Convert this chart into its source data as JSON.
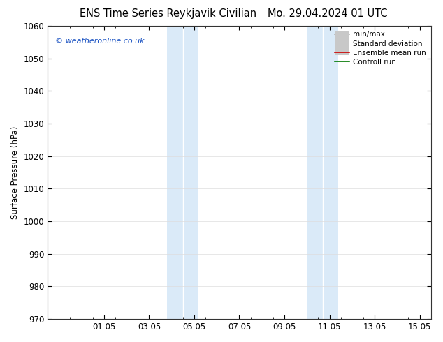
{
  "title_left": "ENS Time Series Reykjavik Civilian",
  "title_right": "Mo. 29.04.2024 01 UTC",
  "ylabel": "Surface Pressure (hPa)",
  "ylim": [
    970,
    1060
  ],
  "yticks": [
    970,
    980,
    990,
    1000,
    1010,
    1020,
    1030,
    1040,
    1050,
    1060
  ],
  "xlim_start": -0.5,
  "xlim_end": 16.5,
  "xtick_positions": [
    2,
    4,
    6,
    8,
    10,
    12,
    14,
    16
  ],
  "xtick_labels": [
    "01.05",
    "03.05",
    "05.05",
    "07.05",
    "09.05",
    "11.05",
    "13.05",
    "15.05"
  ],
  "shaded_bands": [
    {
      "xmin": 4.8,
      "xmax": 5.5,
      "color": "#daeaf8"
    },
    {
      "xmin": 5.5,
      "xmax": 6.2,
      "color": "#daeaf8"
    },
    {
      "xmin": 11.0,
      "xmax": 11.7,
      "color": "#daeaf8"
    },
    {
      "xmin": 11.7,
      "xmax": 12.4,
      "color": "#daeaf8"
    }
  ],
  "shaded_dividers": [
    5.5,
    11.7
  ],
  "copyright_text": "© weatheronline.co.uk",
  "copyright_color": "#1a52c2",
  "legend_items": [
    {
      "label": "min/max",
      "color": "#b0b0b0",
      "lw": 1.2,
      "style": "line_with_caps"
    },
    {
      "label": "Standard deviation",
      "color": "#c8c8c8",
      "lw": 7,
      "style": "thick_line"
    },
    {
      "label": "Ensemble mean run",
      "color": "#cc0000",
      "lw": 1.2,
      "style": "line"
    },
    {
      "label": "Controll run",
      "color": "#007700",
      "lw": 1.2,
      "style": "line"
    }
  ],
  "bg_color": "#ffffff",
  "plot_bg_color": "#ffffff",
  "grid_color": "#dddddd",
  "title_fontsize": 10.5,
  "tick_fontsize": 8.5,
  "ylabel_fontsize": 8.5
}
